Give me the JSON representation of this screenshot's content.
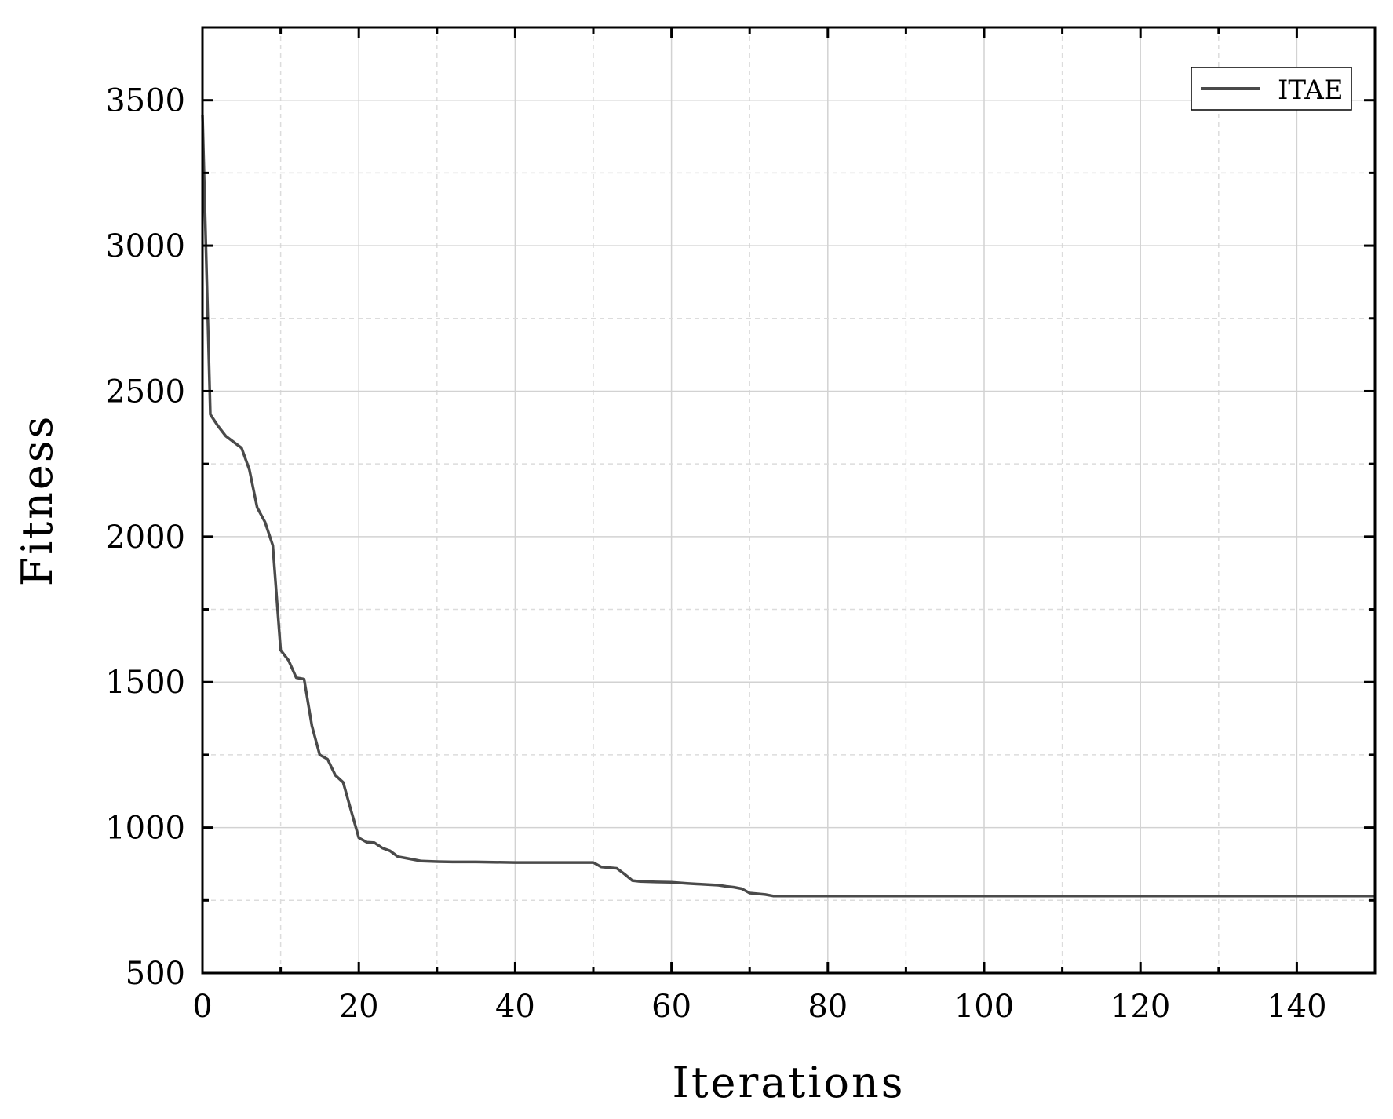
{
  "chart_data": {
    "type": "line",
    "xlabel": "Iterations",
    "ylabel": "Fitness",
    "xlim": [
      0,
      150
    ],
    "ylim": [
      500,
      3750
    ],
    "xticks": [
      0,
      20,
      40,
      60,
      80,
      100,
      120,
      140
    ],
    "yticks": [
      500,
      1000,
      1500,
      2000,
      2500,
      3000,
      3500
    ],
    "grid": true,
    "legend_position": "top-right",
    "line_color": "#4a4a4a",
    "series": [
      {
        "name": "ITAE",
        "x": [
          0,
          1,
          2,
          3,
          4,
          5,
          6,
          7,
          8,
          9,
          10,
          11,
          12,
          13,
          14,
          15,
          16,
          17,
          18,
          19,
          20,
          21,
          22,
          23,
          24,
          25,
          26,
          27,
          28,
          30,
          32,
          35,
          40,
          45,
          50,
          51,
          53,
          54,
          55,
          56,
          58,
          60,
          62,
          64,
          66,
          67,
          68,
          69,
          70,
          72,
          73,
          75,
          80,
          100,
          120,
          150
        ],
        "y": [
          3450,
          2420,
          2380,
          2345,
          2325,
          2305,
          2230,
          2100,
          2050,
          1970,
          1610,
          1575,
          1515,
          1510,
          1350,
          1250,
          1235,
          1180,
          1155,
          1060,
          965,
          950,
          948,
          930,
          920,
          900,
          895,
          890,
          885,
          883,
          882,
          882,
          880,
          880,
          880,
          865,
          860,
          840,
          818,
          815,
          813,
          812,
          808,
          805,
          802,
          798,
          795,
          790,
          775,
          770,
          765,
          765,
          765,
          765,
          765,
          765
        ]
      }
    ]
  }
}
